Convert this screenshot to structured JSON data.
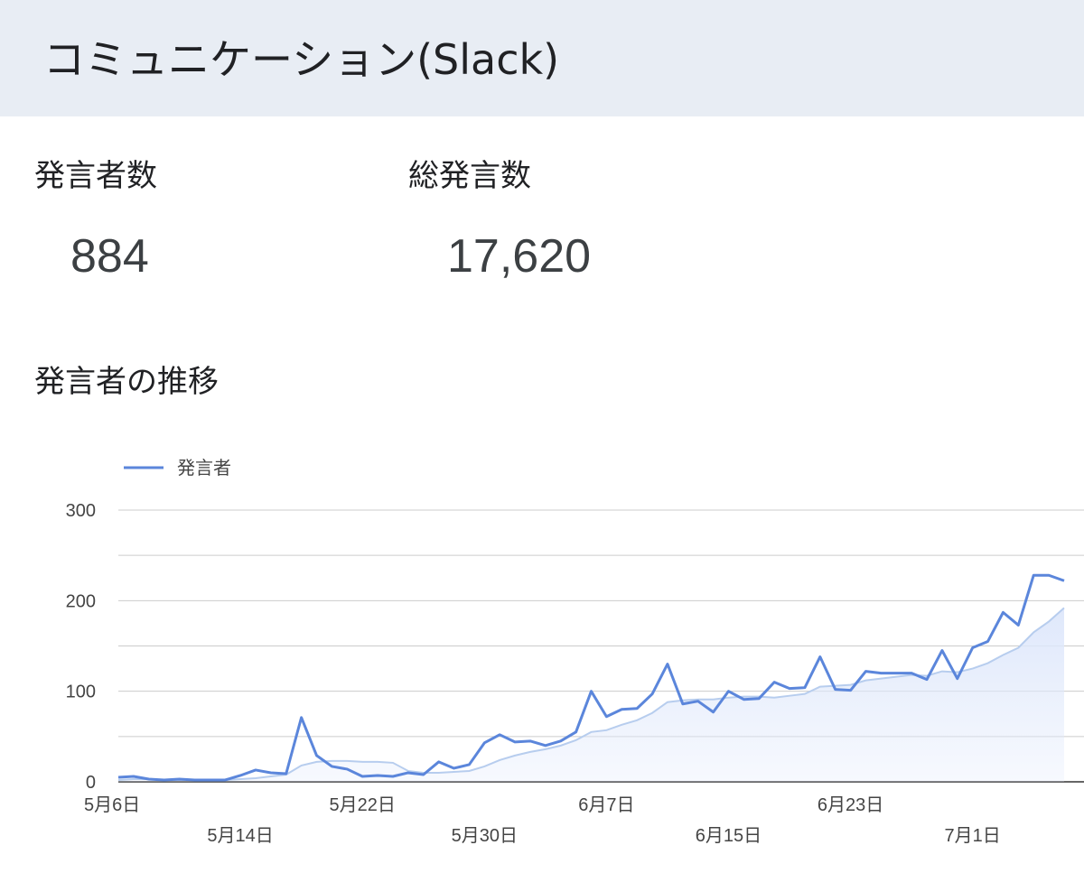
{
  "header": {
    "title": "コミュニケーション(Slack)"
  },
  "kpis": [
    {
      "label": "発言者数",
      "value": "884"
    },
    {
      "label": "総発言数",
      "value": "17,620"
    }
  ],
  "section": {
    "title": "発言者の推移"
  },
  "colors": {
    "line": "#5b86db",
    "trend": "#b7cdee",
    "area": "#dfe8fb",
    "grid": "#cccccc",
    "header_bg": "#e8edf4"
  },
  "chart_data": {
    "type": "line",
    "legend": {
      "position": "top-left"
    },
    "ylim": [
      0,
      300
    ],
    "y_ticks": [
      "0",
      "100",
      "200",
      "300"
    ],
    "x_ticks": [
      {
        "label": "5月6日",
        "index": 0,
        "row": 0
      },
      {
        "label": "5月14日",
        "index": 8,
        "row": 1
      },
      {
        "label": "5月22日",
        "index": 16,
        "row": 0
      },
      {
        "label": "5月30日",
        "index": 24,
        "row": 1
      },
      {
        "label": "6月7日",
        "index": 32,
        "row": 0
      },
      {
        "label": "6月15日",
        "index": 40,
        "row": 1
      },
      {
        "label": "6月23日",
        "index": 48,
        "row": 0
      },
      {
        "label": "7月1日",
        "index": 56,
        "row": 1
      }
    ],
    "series": [
      {
        "name": "発言者",
        "values": [
          5,
          6,
          3,
          2,
          3,
          2,
          2,
          2,
          7,
          13,
          10,
          9,
          71,
          29,
          17,
          14,
          6,
          7,
          6,
          10,
          8,
          22,
          15,
          19,
          43,
          52,
          44,
          45,
          40,
          45,
          55,
          100,
          72,
          80,
          81,
          97,
          130,
          86,
          89,
          77,
          100,
          91,
          92,
          110,
          103,
          104,
          138,
          102,
          101,
          122,
          120,
          120,
          120,
          113,
          145,
          114,
          148,
          155,
          187,
          173,
          228,
          228,
          222
        ]
      }
    ],
    "trend_values": [
      2,
      3,
      3,
      2,
      2,
      2,
      2,
      2,
      3,
      4,
      6,
      8,
      18,
      22,
      23,
      23,
      22,
      22,
      21,
      12,
      10,
      10,
      11,
      12,
      17,
      24,
      29,
      33,
      36,
      40,
      46,
      55,
      57,
      63,
      68,
      76,
      88,
      90,
      91,
      91,
      93,
      94,
      94,
      93,
      95,
      97,
      105,
      106,
      107,
      112,
      114,
      116,
      118,
      117,
      122,
      121,
      125,
      131,
      140,
      148,
      165,
      177,
      192
    ]
  }
}
